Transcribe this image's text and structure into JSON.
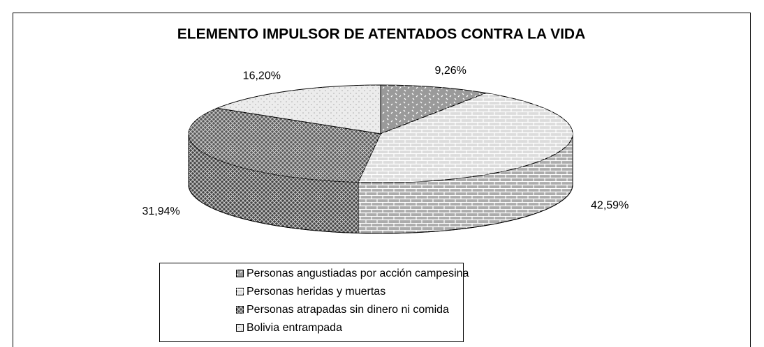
{
  "chart_data": {
    "type": "pie",
    "title": "ELEMENTO IMPULSOR DE ATENTADOS CONTRA LA VIDA",
    "categories": [
      "Personas angustiadas por acción campesina",
      "Personas heridas y muertas",
      "Personas atrapadas sin dinero ni comida",
      "Bolivia entrampada"
    ],
    "values": [
      9.26,
      42.59,
      31.94,
      16.2
    ],
    "value_labels": [
      "9,26%",
      "42,59%",
      "31,94%",
      "16,20%"
    ],
    "colors": [
      "#9a9a9a",
      "#dcdcdc",
      "#5a5a5a",
      "#ececec"
    ]
  }
}
